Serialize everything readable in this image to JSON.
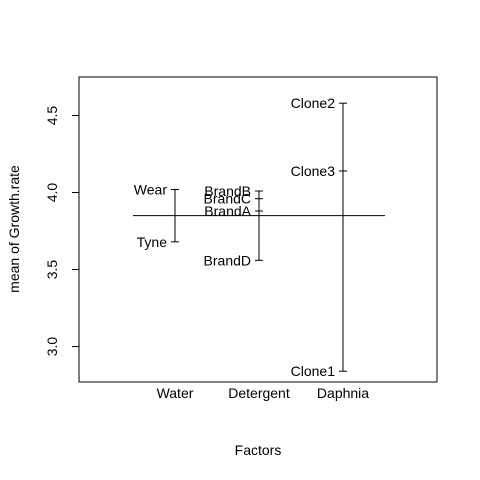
{
  "chart_data": {
    "type": "design-plot",
    "title": "",
    "xlabel": "Factors",
    "ylabel": "mean of Growth.rate",
    "ylim": [
      2.77,
      4.75
    ],
    "y_ticks": [
      3.0,
      3.5,
      4.0,
      4.5
    ],
    "y_tick_labels": [
      "3.0",
      "3.5",
      "4.0",
      "4.5"
    ],
    "grand_mean": 3.85,
    "categories": [
      "Water",
      "Detergent",
      "Daphnia"
    ],
    "factors": [
      {
        "name": "Water",
        "levels": [
          {
            "label": "Wear",
            "value": 4.02
          },
          {
            "label": "Tyne",
            "value": 3.68
          }
        ]
      },
      {
        "name": "Detergent",
        "levels": [
          {
            "label": "BrandB",
            "value": 4.01
          },
          {
            "label": "BrandC",
            "value": 3.96
          },
          {
            "label": "BrandA",
            "value": 3.88
          },
          {
            "label": "BrandD",
            "value": 3.56
          }
        ]
      },
      {
        "name": "Daphnia",
        "levels": [
          {
            "label": "Clone2",
            "value": 4.58
          },
          {
            "label": "Clone3",
            "value": 4.14
          },
          {
            "label": "Clone1",
            "value": 2.84
          }
        ]
      }
    ]
  }
}
